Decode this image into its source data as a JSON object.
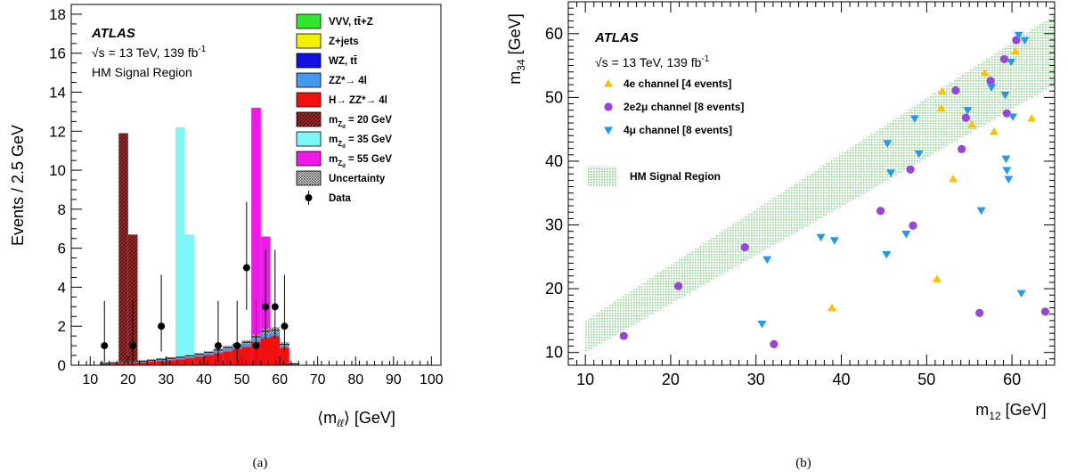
{
  "colors": {
    "vvv": "#2ee82e",
    "zjets": "#f5f000",
    "wz": "#1010e0",
    "zz": "#4499ee",
    "h": "#f01010",
    "sig20": "#7a1a1a",
    "sig35": "#7cf6f6",
    "sig55": "#f018e8",
    "band": "#b8eab8",
    "tri_up": "#ffc000",
    "circle": "#9944dd",
    "tri_down": "#2299ee"
  },
  "chart_data": [
    {
      "id": "a",
      "type": "bar",
      "panel_label": "(a)",
      "atlas": "ATLAS",
      "energy_text": "√s = 13 TeV, 139 fb",
      "energy_sup": "-1",
      "region_text": "HM Signal Region",
      "ylabel": "Events / 2.5 GeV",
      "xlabel": "⟨m",
      "xlabel_sub": "ℓℓ",
      "xlabel_tail": "⟩ [GeV]",
      "xlim": [
        5,
        102.5
      ],
      "ylim": [
        0,
        18.5
      ],
      "bin_width": 2.5,
      "xticks": [
        10,
        20,
        30,
        40,
        50,
        60,
        70,
        80,
        90,
        100
      ],
      "yticks": [
        0,
        2,
        4,
        6,
        8,
        10,
        12,
        14,
        16,
        18
      ],
      "legend": [
        {
          "label": "VVV, tt̄+Z",
          "kind": "box",
          "color_key": "vvv"
        },
        {
          "label": "Z+jets",
          "kind": "box",
          "color_key": "zjets"
        },
        {
          "label": "WZ, tt̄",
          "kind": "box",
          "color_key": "wz"
        },
        {
          "label": "ZZ*→ 4l",
          "kind": "box",
          "color_key": "zz"
        },
        {
          "label": "H→ ZZ*→ 4l",
          "kind": "box",
          "color_key": "h"
        },
        {
          "label": "m",
          "sub": "Z",
          "subsub": "d",
          "tail": " = 20 GeV",
          "kind": "box",
          "color_key": "sig20"
        },
        {
          "label": "m",
          "sub": "Z",
          "subsub": "d",
          "tail": " = 35 GeV",
          "kind": "box",
          "color_key": "sig35"
        },
        {
          "label": "m",
          "sub": "Z",
          "subsub": "d",
          "tail": " = 55 GeV",
          "kind": "box",
          "color_key": "sig55"
        },
        {
          "label": "Uncertainty",
          "kind": "hatch",
          "color_key": "none"
        },
        {
          "label": "Data",
          "kind": "dot",
          "color_key": "none"
        }
      ],
      "background_bins": {
        "x_low": [
          12.5,
          15,
          17.5,
          20,
          22.5,
          25,
          27.5,
          30,
          32.5,
          35,
          37.5,
          40,
          42.5,
          45,
          47.5,
          50,
          52.5,
          55,
          57.5,
          60,
          62.5
        ],
        "h": [
          0.05,
          0.07,
          0.09,
          0.12,
          0.14,
          0.18,
          0.22,
          0.26,
          0.3,
          0.36,
          0.44,
          0.52,
          0.62,
          0.72,
          0.82,
          0.95,
          1.2,
          1.4,
          1.5,
          0.9,
          0.05
        ],
        "zz": [
          0.03,
          0.03,
          0.04,
          0.05,
          0.05,
          0.06,
          0.07,
          0.07,
          0.08,
          0.09,
          0.1,
          0.11,
          0.13,
          0.15,
          0.17,
          0.19,
          0.22,
          0.3,
          0.25,
          0.15,
          0.02
        ],
        "wz": [
          0.01,
          0.01,
          0.01,
          0.01,
          0.01,
          0.01,
          0.01,
          0.01,
          0.01,
          0.01,
          0.01,
          0.01,
          0.01,
          0.02,
          0.02,
          0.02,
          0.02,
          0.02,
          0.02,
          0.01,
          0.0
        ],
        "zjets": [
          0.01,
          0.01,
          0.01,
          0.01,
          0.01,
          0.01,
          0.01,
          0.01,
          0.01,
          0.01,
          0.01,
          0.01,
          0.01,
          0.01,
          0.01,
          0.01,
          0.01,
          0.01,
          0.01,
          0.01,
          0.0
        ],
        "vvv": [
          0.0,
          0.0,
          0.0,
          0.0,
          0.0,
          0.0,
          0.0,
          0.01,
          0.01,
          0.01,
          0.01,
          0.01,
          0.01,
          0.01,
          0.01,
          0.01,
          0.01,
          0.01,
          0.01,
          0.01,
          0.0
        ]
      },
      "signal_bins": [
        {
          "mass": 20,
          "x_low": [
            17.5,
            20
          ],
          "values": [
            11.9,
            6.7
          ],
          "color_key": "sig20"
        },
        {
          "mass": 35,
          "x_low": [
            32.5,
            35
          ],
          "values": [
            12.2,
            6.7
          ],
          "color_key": "sig35"
        },
        {
          "mass": 55,
          "x_low": [
            52.5,
            55
          ],
          "values": [
            13.2,
            6.6
          ],
          "color_key": "sig55"
        }
      ],
      "data_points": [
        {
          "x": 13.75,
          "y": 1,
          "err_low": 0.83,
          "err_high": 2.3
        },
        {
          "x": 21.25,
          "y": 1,
          "err_low": 0.83,
          "err_high": 2.3
        },
        {
          "x": 28.75,
          "y": 2,
          "err_low": 1.29,
          "err_high": 2.64
        },
        {
          "x": 43.75,
          "y": 1,
          "err_low": 0.83,
          "err_high": 2.3
        },
        {
          "x": 48.75,
          "y": 1,
          "err_low": 0.83,
          "err_high": 2.3
        },
        {
          "x": 51.25,
          "y": 5,
          "err_low": 2.16,
          "err_high": 3.38
        },
        {
          "x": 53.75,
          "y": 1,
          "err_low": 0.83,
          "err_high": 2.3
        },
        {
          "x": 56.25,
          "y": 3,
          "err_low": 1.63,
          "err_high": 2.92
        },
        {
          "x": 58.75,
          "y": 3,
          "err_low": 1.63,
          "err_high": 2.92
        },
        {
          "x": 61.25,
          "y": 2,
          "err_low": 1.29,
          "err_high": 2.64
        }
      ]
    },
    {
      "id": "b",
      "type": "scatter",
      "panel_label": "(b)",
      "atlas": "ATLAS",
      "energy_text": "√s = 13 TeV, 139 fb",
      "energy_sup": "-1",
      "xlabel": "m",
      "xlabel_sub": "12",
      "xlabel_tail": " [GeV]",
      "ylabel": "m",
      "ylabel_sub": "34",
      "ylabel_tail": " [GeV]",
      "xlim": [
        8,
        65
      ],
      "ylim": [
        8,
        65
      ],
      "xticks": [
        10,
        20,
        30,
        40,
        50,
        60
      ],
      "yticks": [
        10,
        20,
        30,
        40,
        50,
        60
      ],
      "band_label": "HM Signal Region",
      "band": {
        "x": [
          10,
          65
        ],
        "lower": [
          10,
          52
        ],
        "upper": [
          15,
          63
        ]
      },
      "series": [
        {
          "name": "4e channel [4 events]",
          "marker": "triangle-up",
          "color_key": "tri_up",
          "points": [
            [
              38.9,
              17
            ],
            [
              51.2,
              21.5
            ],
            [
              51.7,
              48.3
            ],
            [
              51.8,
              50.9
            ],
            [
              53.1,
              37.2
            ],
            [
              55.3,
              45.7
            ],
            [
              56.8,
              53.8
            ],
            [
              57.9,
              44.6
            ],
            [
              60.4,
              57.2
            ],
            [
              62.3,
              46.7
            ]
          ]
        },
        {
          "name": "2e2μ channel [8 events]",
          "marker": "circle",
          "color_key": "circle",
          "points": [
            [
              14.5,
              12.6
            ],
            [
              20.9,
              20.4
            ],
            [
              28.7,
              26.5
            ],
            [
              32.1,
              11.3
            ],
            [
              44.6,
              32.2
            ],
            [
              48.1,
              38.7
            ],
            [
              48.4,
              29.9
            ],
            [
              53.4,
              51.1
            ],
            [
              54.1,
              41.9
            ],
            [
              54.6,
              46.8
            ],
            [
              56.2,
              16.2
            ],
            [
              57.5,
              52.6
            ],
            [
              59.1,
              56
            ],
            [
              59.4,
              47.5
            ],
            [
              60.5,
              59
            ],
            [
              63.9,
              16.4
            ]
          ]
        },
        {
          "name": "4μ channel [8 events]",
          "marker": "triangle-down",
          "color_key": "tri_down",
          "points": [
            [
              30.7,
              14.5
            ],
            [
              31.3,
              24.6
            ],
            [
              37.6,
              28.1
            ],
            [
              39.2,
              27.6
            ],
            [
              45.3,
              25.4
            ],
            [
              45.4,
              42.8
            ],
            [
              45.8,
              38.2
            ],
            [
              47.6,
              28.6
            ],
            [
              48.6,
              46.7
            ],
            [
              49.1,
              41.2
            ],
            [
              54.8,
              48
            ],
            [
              56.4,
              32.3
            ],
            [
              57.6,
              51.6
            ],
            [
              59.2,
              50.4
            ],
            [
              59.3,
              40.4
            ],
            [
              59.4,
              38.6
            ],
            [
              59.6,
              37.2
            ],
            [
              59.9,
              55.6
            ],
            [
              60.1,
              47
            ],
            [
              60.8,
              59.8
            ],
            [
              61.1,
              19.3
            ],
            [
              61.5,
              59
            ]
          ]
        }
      ]
    }
  ]
}
